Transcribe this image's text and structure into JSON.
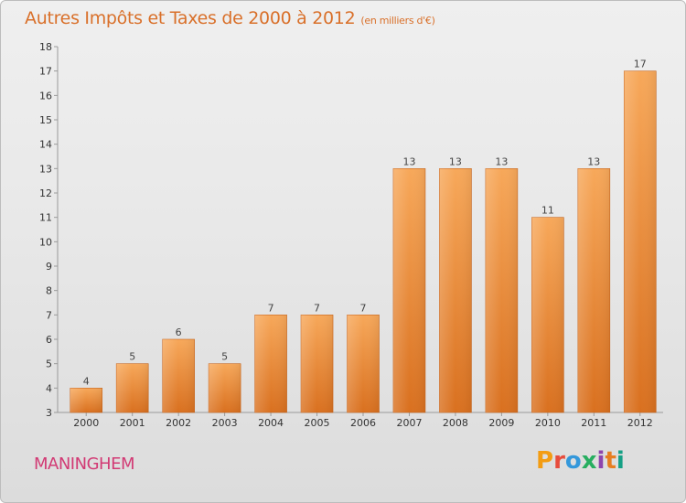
{
  "header": {
    "title": "Autres Impôts et Taxes de 2000 à 2012",
    "subtitle": "(en milliers d'€)"
  },
  "footer": {
    "commune": "MANINGHEM"
  },
  "logo": {
    "text": "Proxiti",
    "colors": [
      "#f39c12",
      "#e74c3c",
      "#3498db",
      "#27ae60",
      "#8e44ad",
      "#e67e22",
      "#16a085"
    ]
  },
  "chart_data": {
    "type": "bar",
    "title": "Autres Impôts et Taxes de 2000 à 2012",
    "subtitle": "(en milliers d'€)",
    "categories": [
      "2000",
      "2001",
      "2002",
      "2003",
      "2004",
      "2005",
      "2006",
      "2007",
      "2008",
      "2009",
      "2010",
      "2011",
      "2012"
    ],
    "values": [
      4,
      5,
      6,
      5,
      7,
      7,
      7,
      13,
      13,
      13,
      11,
      13,
      17
    ],
    "ylim": [
      3,
      18
    ],
    "yticks": [
      3,
      4,
      5,
      6,
      7,
      8,
      9,
      10,
      11,
      12,
      13,
      14,
      15,
      16,
      17,
      18
    ],
    "grid": false,
    "bar_color_top": "#f7a85a",
    "bar_color_bottom": "#d9701f"
  }
}
